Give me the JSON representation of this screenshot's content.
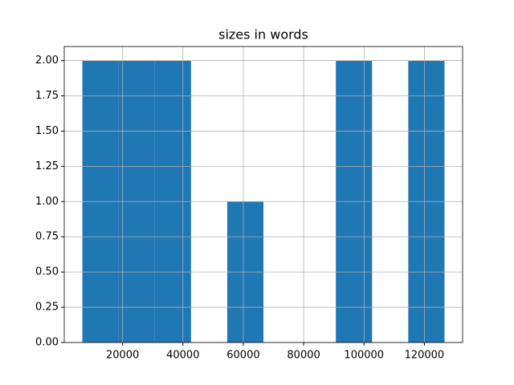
{
  "chart_data": {
    "type": "histogram",
    "title": "sizes in words",
    "bins": [
      6667,
      18667,
      30667,
      42667,
      54667,
      66667,
      78667,
      90667,
      102667,
      114667,
      126667
    ],
    "values": [
      2,
      2,
      2,
      0,
      1,
      0,
      0,
      2,
      0,
      2
    ],
    "color": "#1f77b4",
    "xlim": [
      667,
      132667
    ],
    "xticks": [
      20000,
      40000,
      60000,
      80000,
      100000,
      120000
    ],
    "ylim": [
      0,
      2.1
    ],
    "yticks": [
      {
        "value": 0,
        "label": "0.00"
      },
      {
        "value": 0.25,
        "label": "0.25"
      },
      {
        "value": 0.5,
        "label": "0.50"
      },
      {
        "value": 0.75,
        "label": "0.75"
      },
      {
        "value": 1,
        "label": "1.00"
      },
      {
        "value": 1.25,
        "label": "1.25"
      },
      {
        "value": 1.5,
        "label": "1.50"
      },
      {
        "value": 1.75,
        "label": "1.75"
      },
      {
        "value": 2,
        "label": "2.00"
      }
    ],
    "grid": true
  }
}
